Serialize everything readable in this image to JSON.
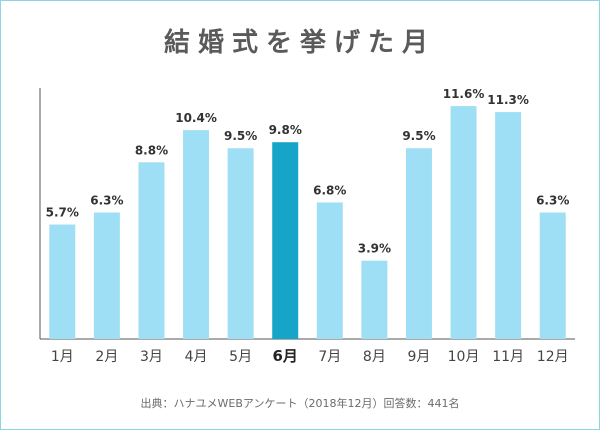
{
  "title": "結婚式を挙げた月",
  "source": "出典：ハナユメWEBアンケート（2018年12月）回答数：441名",
  "colors": {
    "bar": "#9fdff5",
    "highlight": "#16a4c8",
    "axis": "#555555",
    "frame": "#8fd3e6"
  },
  "chart_data": {
    "type": "bar",
    "categories": [
      "1月",
      "2月",
      "3月",
      "4月",
      "5月",
      "6月",
      "7月",
      "8月",
      "9月",
      "10月",
      "11月",
      "12月"
    ],
    "values": [
      5.7,
      6.3,
      8.8,
      10.4,
      9.5,
      9.8,
      6.8,
      3.9,
      9.5,
      11.6,
      11.3,
      6.3
    ],
    "value_labels": [
      "5.7%",
      "6.3%",
      "8.8%",
      "10.4%",
      "9.5%",
      "9.8%",
      "6.8%",
      "3.9%",
      "9.5%",
      "11.6%",
      "11.3%",
      "6.3%"
    ],
    "highlight_category": "6月",
    "ylim": [
      0,
      12.5
    ],
    "grid": false
  }
}
